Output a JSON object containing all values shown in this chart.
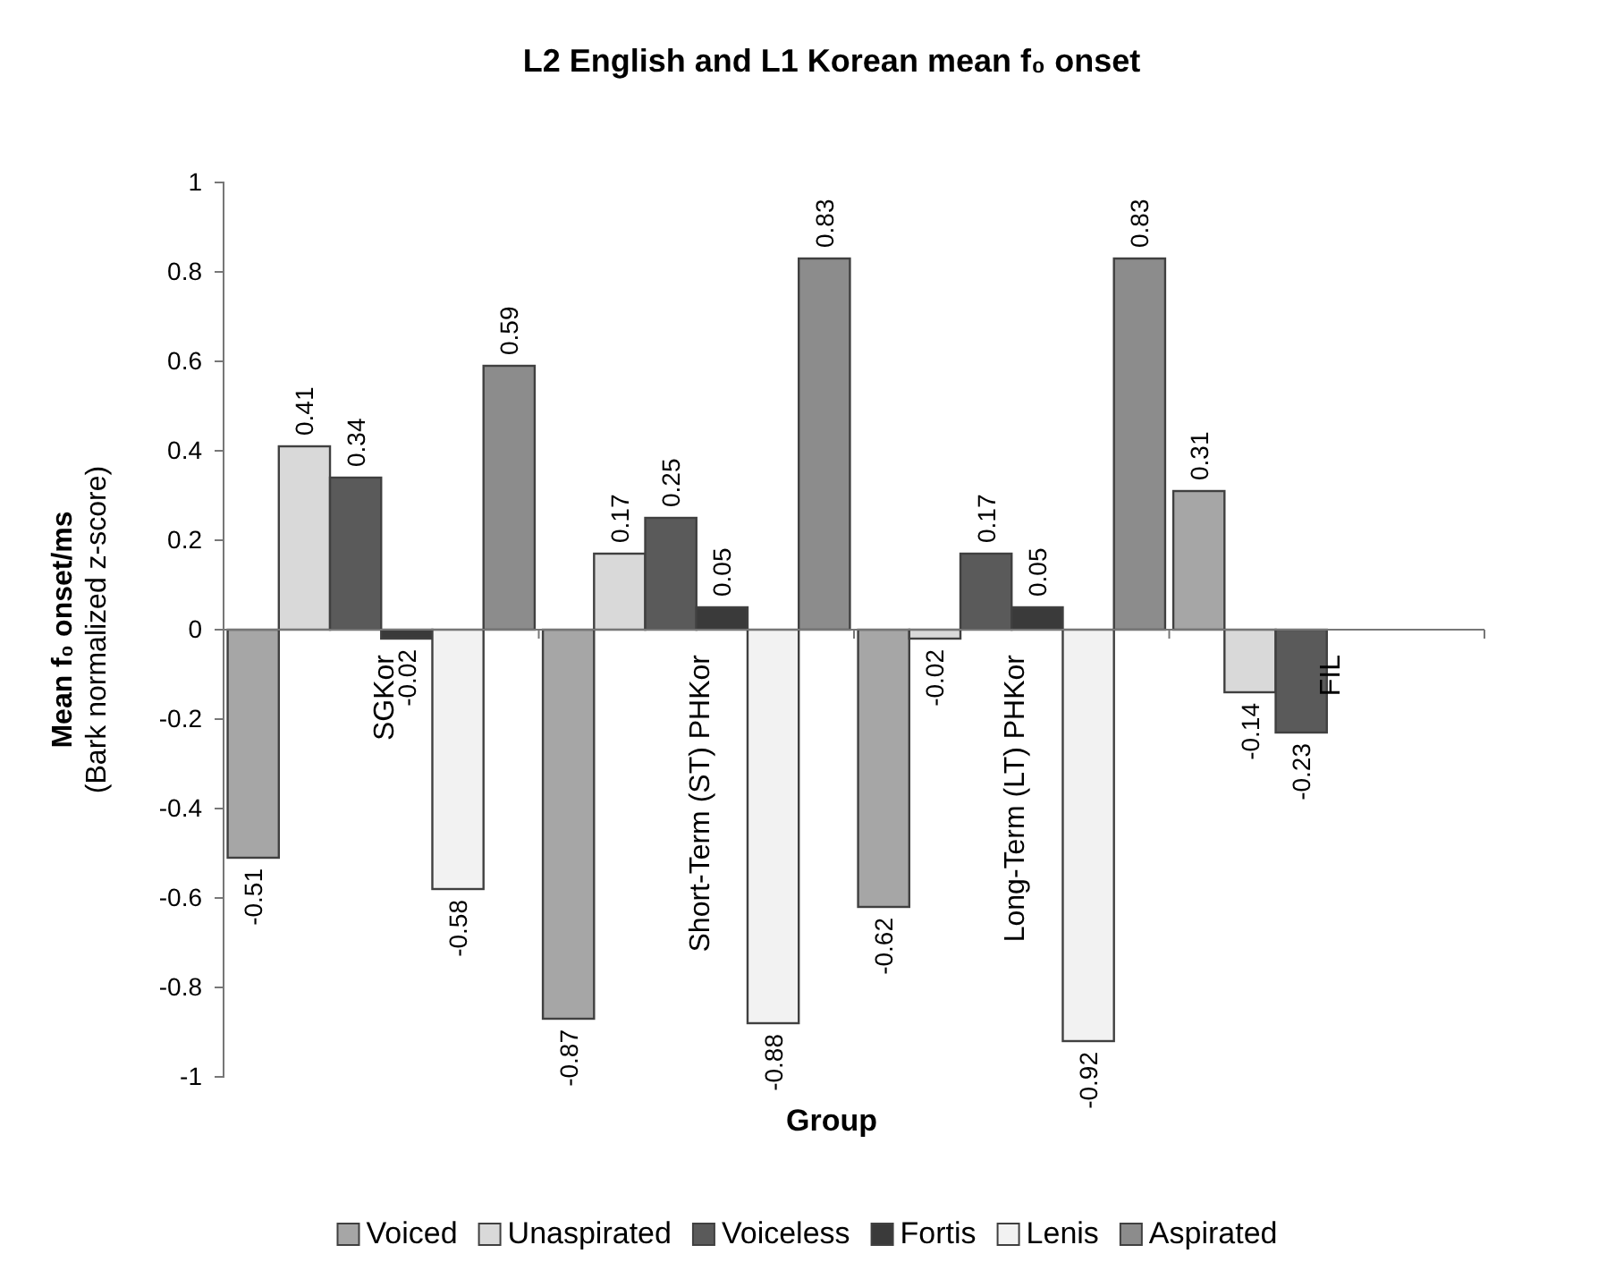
{
  "chart_data": {
    "type": "bar",
    "title": "L2 English and L1 Korean mean f₀ onset",
    "xlabel": "Group",
    "ylabel": "Mean f₀ onset/ms\n(Bark normalized z-score)",
    "categories": [
      "SGKor",
      "Short-Term (ST) PHKor",
      "Long-Term (LT) PHKor",
      "FIL"
    ],
    "series": [
      {
        "name": "Voiced",
        "color": "#a6a6a6",
        "values": [
          -0.51,
          -0.87,
          -0.62,
          0.31
        ]
      },
      {
        "name": "Unaspirated",
        "color": "#d9d9d9",
        "values": [
          0.41,
          0.17,
          -0.02,
          -0.14
        ]
      },
      {
        "name": "Voiceless",
        "color": "#5a5a5a",
        "values": [
          0.34,
          0.25,
          0.17,
          -0.23
        ]
      },
      {
        "name": "Fortis",
        "color": "#3a3a3a",
        "values": [
          -0.02,
          0.05,
          0.05,
          null
        ]
      },
      {
        "name": "Lenis",
        "color": "#f2f2f2",
        "values": [
          -0.58,
          -0.88,
          -0.92,
          null
        ]
      },
      {
        "name": "Aspirated",
        "color": "#8c8c8c",
        "values": [
          0.59,
          0.83,
          0.83,
          null
        ]
      }
    ],
    "ylim": [
      -1,
      1
    ],
    "yticks": [
      -1,
      -0.8,
      -0.6,
      -0.4,
      -0.2,
      0,
      0.2,
      0.4,
      0.6,
      0.8,
      1
    ],
    "data_labels": true,
    "legend": "bottom"
  }
}
